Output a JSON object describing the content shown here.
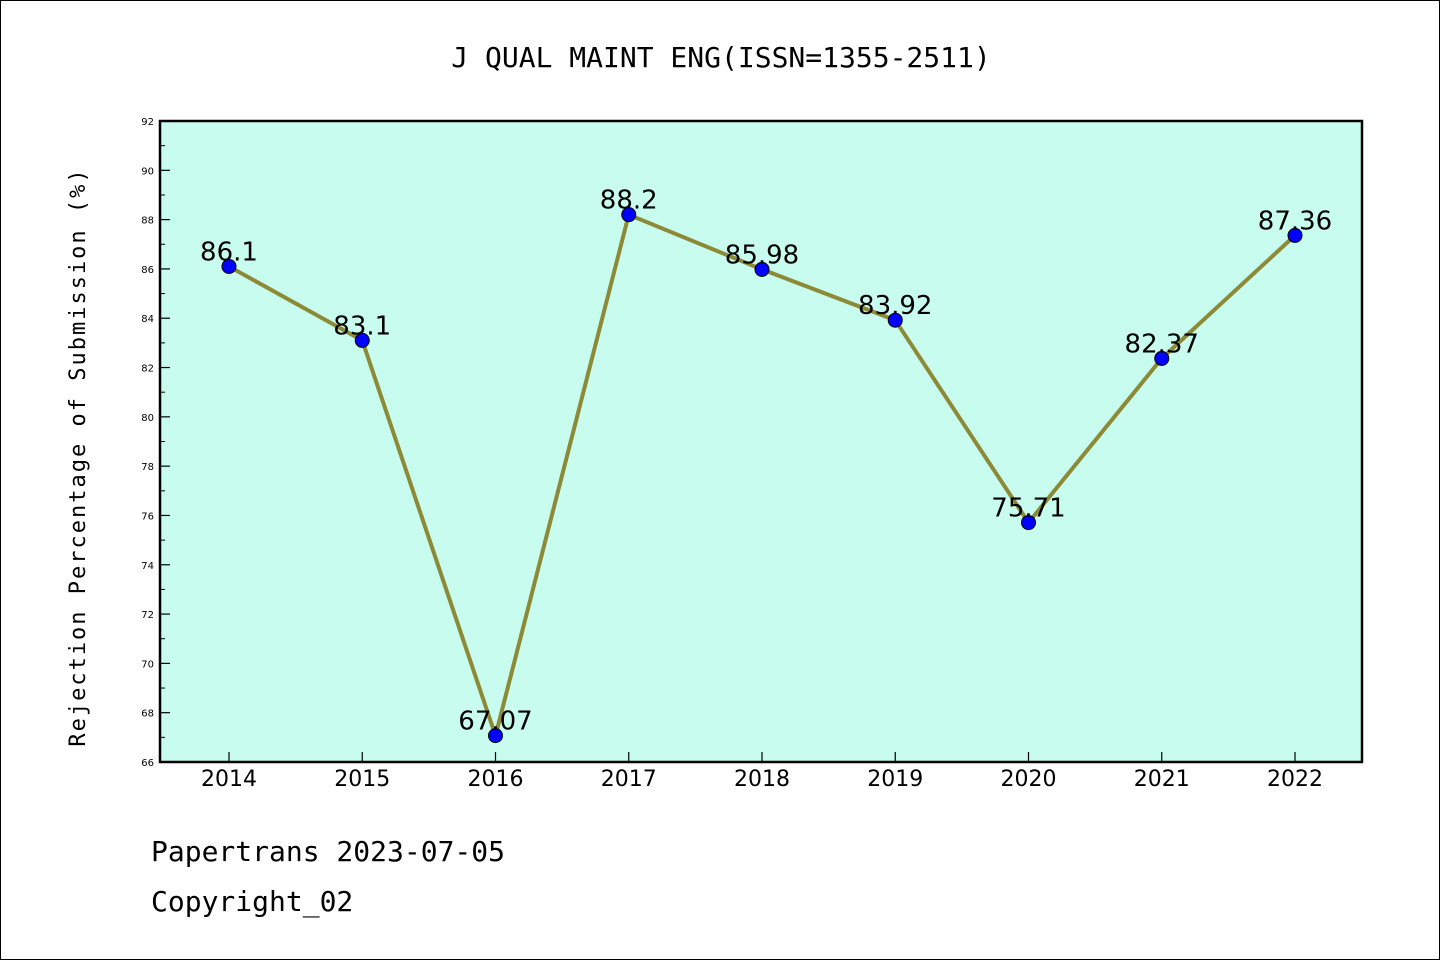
{
  "chart_data": {
    "type": "line",
    "title": "J QUAL MAINT ENG(ISSN=1355-2511)",
    "ylabel": "Rejection Percentage of Submission (%)",
    "xlabel": "",
    "categories": [
      "2014",
      "2015",
      "2016",
      "2017",
      "2018",
      "2019",
      "2020",
      "2021",
      "2022"
    ],
    "values": [
      86.1,
      83.1,
      67.07,
      88.2,
      85.98,
      83.92,
      75.71,
      82.37,
      87.36
    ],
    "data_labels": [
      "86.1",
      "83.1",
      "67.07",
      "88.2",
      "85.98",
      "83.92",
      "75.71",
      "82.37",
      "87.36"
    ],
    "ylim": [
      66,
      92
    ],
    "yticks": [
      66,
      68,
      70,
      72,
      74,
      76,
      78,
      80,
      82,
      84,
      86,
      88,
      90,
      92
    ],
    "grid": false,
    "legend": "none",
    "colors": {
      "plot_background": "#c8fcee",
      "line": "#8c8a36",
      "marker": "#0000ff",
      "axes": "#000000"
    }
  },
  "footer": {
    "line1": "Papertrans 2023-07-05",
    "line2": "Copyright_02"
  }
}
